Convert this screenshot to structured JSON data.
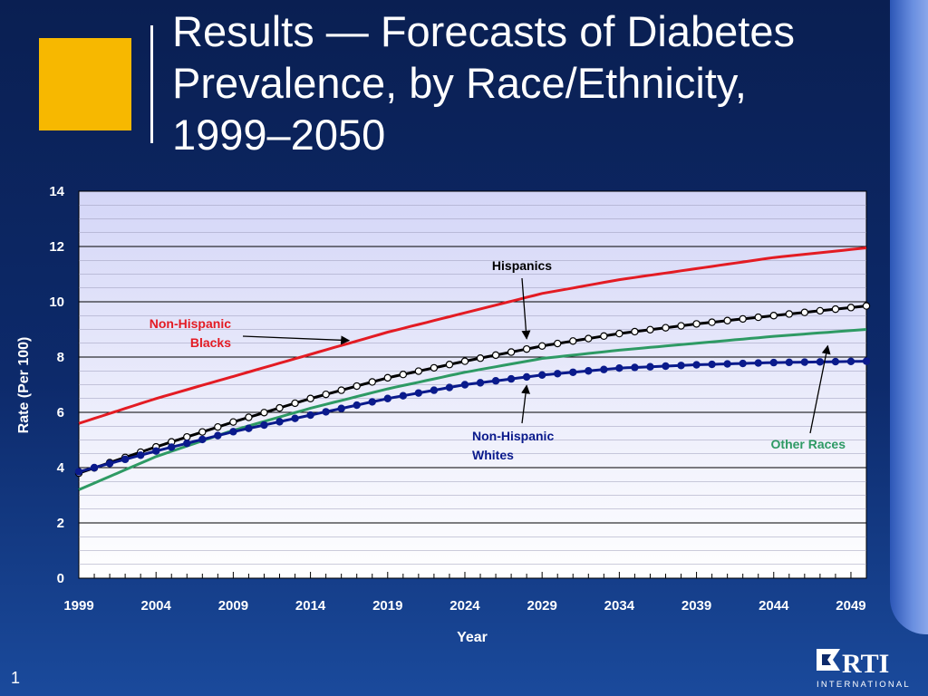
{
  "slide": {
    "title_lines": [
      "Results — Forecasts of Diabetes",
      "Prevalence, by Race/Ethnicity,",
      "1999–2050"
    ],
    "page_number": "1",
    "logo_text": "RTI",
    "logo_subtext": "INTERNATIONAL",
    "colors": {
      "accent": "#f7b800",
      "background": "#0d2a6b",
      "plot_bg": "#e6e6fa"
    }
  },
  "chart_data": {
    "type": "line",
    "xlabel": "Year",
    "ylabel": "Rate (Per 100)",
    "xlim": [
      1999,
      2050
    ],
    "ylim": [
      0,
      14
    ],
    "x_ticks": [
      1999,
      2004,
      2009,
      2014,
      2019,
      2024,
      2029,
      2034,
      2039,
      2044,
      2049
    ],
    "y_ticks": [
      0,
      2,
      4,
      6,
      8,
      10,
      12,
      14
    ],
    "grid": "horizontal",
    "series": [
      {
        "name": "Non-Hispanic Blacks",
        "color": "#e31b23",
        "marker": "none",
        "x": [
          1999,
          2004,
          2009,
          2014,
          2019,
          2024,
          2029,
          2034,
          2039,
          2044,
          2050
        ],
        "y": [
          5.6,
          6.5,
          7.3,
          8.1,
          8.9,
          9.6,
          10.3,
          10.8,
          11.2,
          11.6,
          11.95
        ]
      },
      {
        "name": "Hispanics",
        "color": "#000000",
        "marker": "open-circle",
        "x": [
          1999,
          2004,
          2009,
          2014,
          2019,
          2024,
          2029,
          2034,
          2039,
          2044,
          2050
        ],
        "y": [
          3.8,
          4.75,
          5.65,
          6.5,
          7.25,
          7.85,
          8.4,
          8.85,
          9.2,
          9.5,
          9.85
        ]
      },
      {
        "name": "Other Races",
        "color": "#2e9a64",
        "marker": "none",
        "x": [
          1999,
          2004,
          2009,
          2014,
          2019,
          2024,
          2029,
          2034,
          2039,
          2044,
          2050
        ],
        "y": [
          3.2,
          4.4,
          5.35,
          6.15,
          6.85,
          7.45,
          7.95,
          8.25,
          8.5,
          8.75,
          9.0
        ]
      },
      {
        "name": "Non-Hispanic Whites",
        "color": "#0a1a8c",
        "marker": "filled-circle",
        "x": [
          1999,
          2004,
          2009,
          2014,
          2019,
          2024,
          2029,
          2034,
          2039,
          2044,
          2050
        ],
        "y": [
          3.85,
          4.6,
          5.3,
          5.9,
          6.5,
          7.0,
          7.35,
          7.6,
          7.72,
          7.8,
          7.85
        ]
      }
    ],
    "annotations": [
      {
        "lines": [
          "Hispanics"
        ],
        "color": "#000000",
        "arrow_to": [
          2028,
          8.4
        ]
      },
      {
        "lines": [
          "Non-Hispanic",
          "Blacks"
        ],
        "color": "#e31b23",
        "arrow_to": [
          2016.5,
          8.6
        ]
      },
      {
        "lines": [
          "Non-Hispanic",
          "Whites"
        ],
        "color": "#0a1a8c",
        "arrow_to": [
          2028,
          7.3
        ]
      },
      {
        "lines": [
          "Other Races"
        ],
        "color": "#2e9a64",
        "arrow_to": [
          2047.5,
          8.8
        ]
      }
    ]
  }
}
